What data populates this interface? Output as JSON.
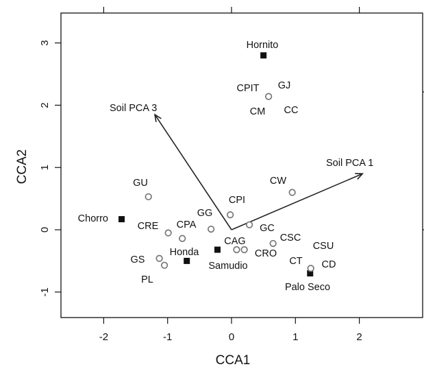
{
  "chart_data": {
    "type": "scatter",
    "title": "",
    "xlabel": "CCA1",
    "ylabel": "CCA2",
    "xlim": [
      -2.7,
      2.7
    ],
    "ylim": [
      -1.45,
      3.45
    ],
    "grid": false,
    "x_ticks": [
      -2,
      -1,
      0,
      1,
      2
    ],
    "y_ticks": [
      -1,
      0,
      1,
      2,
      3
    ],
    "top_ticks": [
      "-2",
      "0",
      "2"
    ],
    "right_ticks": [
      "-1",
      "0"
    ],
    "series": [
      {
        "marker": "filled-square",
        "color": "#111111",
        "points": [
          {
            "label": "Hornito",
            "x": 0.5,
            "y": 2.8
          },
          {
            "label": "Chorro",
            "x": -1.72,
            "y": 0.17
          },
          {
            "label": "Honda",
            "x": -0.7,
            "y": -0.5
          },
          {
            "label": "Samudio",
            "x": -0.22,
            "y": -0.32
          },
          {
            "label": "Palo Seco",
            "x": 1.23,
            "y": -0.7
          }
        ]
      },
      {
        "marker": "open-circle",
        "color": "#777777",
        "points": [
          {
            "label": "CPIT",
            "x": 0.58,
            "y": 2.14
          },
          {
            "label": "GJ",
            "x": null,
            "y": null
          },
          {
            "label": "CM",
            "x": null,
            "y": null
          },
          {
            "label": "CC",
            "x": null,
            "y": null
          },
          {
            "label": "CW",
            "x": 0.95,
            "y": 0.6
          },
          {
            "label": "GU",
            "x": -1.3,
            "y": 0.53
          },
          {
            "label": "CPI",
            "x": -0.02,
            "y": 0.24
          },
          {
            "label": "GG",
            "x": -0.32,
            "y": 0.01
          },
          {
            "label": "CRE",
            "x": -0.99,
            "y": -0.05
          },
          {
            "label": "CPA",
            "x": -0.77,
            "y": -0.14
          },
          {
            "label": "GC",
            "x": 0.28,
            "y": 0.08
          },
          {
            "label": "CAG",
            "x": 0.08,
            "y": -0.32
          },
          {
            "label": "CRO",
            "x": 0.2,
            "y": -0.32
          },
          {
            "label": "CSC",
            "x": 0.65,
            "y": -0.22
          },
          {
            "label": "GS",
            "x": -1.13,
            "y": -0.46
          },
          {
            "label": "PL",
            "x": -1.05,
            "y": -0.57
          },
          {
            "label": "CT",
            "x": 1.24,
            "y": -0.62
          },
          {
            "label": "CSU",
            "x": null,
            "y": null
          },
          {
            "label": "CD",
            "x": null,
            "y": null
          }
        ]
      }
    ],
    "vectors": [
      {
        "label": "Soil PCA 1",
        "x": 2.05,
        "y": 0.9
      },
      {
        "label": "Soil PCA 3",
        "x": -1.2,
        "y": 1.85
      }
    ]
  }
}
